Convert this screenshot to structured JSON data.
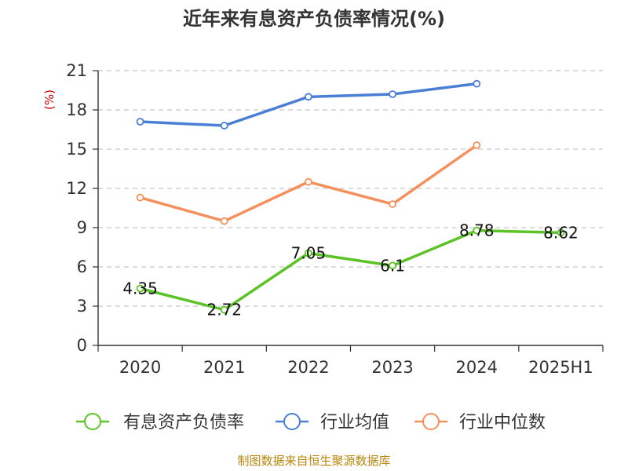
{
  "chart_data": {
    "type": "line",
    "title": "近年来有息资产负债率情况(%)",
    "ylabel": "(%)",
    "categories": [
      "2020",
      "2021",
      "2022",
      "2023",
      "2024",
      "2025H1"
    ],
    "ylim": [
      0,
      21
    ],
    "yticks": [
      0,
      3,
      6,
      9,
      12,
      15,
      18,
      21
    ],
    "grid": "horizontal-dashed",
    "legend_position": "bottom",
    "series": [
      {
        "name": "有息资产负债率",
        "color": "#5bc326",
        "values": [
          4.35,
          2.72,
          7.05,
          6.1,
          8.78,
          8.62
        ],
        "labels": [
          "4.35",
          "2.72",
          "7.05",
          "6.1",
          "8.78",
          "8.62"
        ]
      },
      {
        "name": "行业均值",
        "color": "#4a7fd6",
        "values": [
          17.1,
          16.8,
          19.0,
          19.2,
          20.0,
          null
        ]
      },
      {
        "name": "行业中位数",
        "color": "#f5905c",
        "values": [
          11.3,
          9.5,
          12.5,
          10.8,
          15.3,
          null
        ]
      }
    ]
  },
  "footer": {
    "source": "制图数据来自恒生聚源数据库"
  }
}
